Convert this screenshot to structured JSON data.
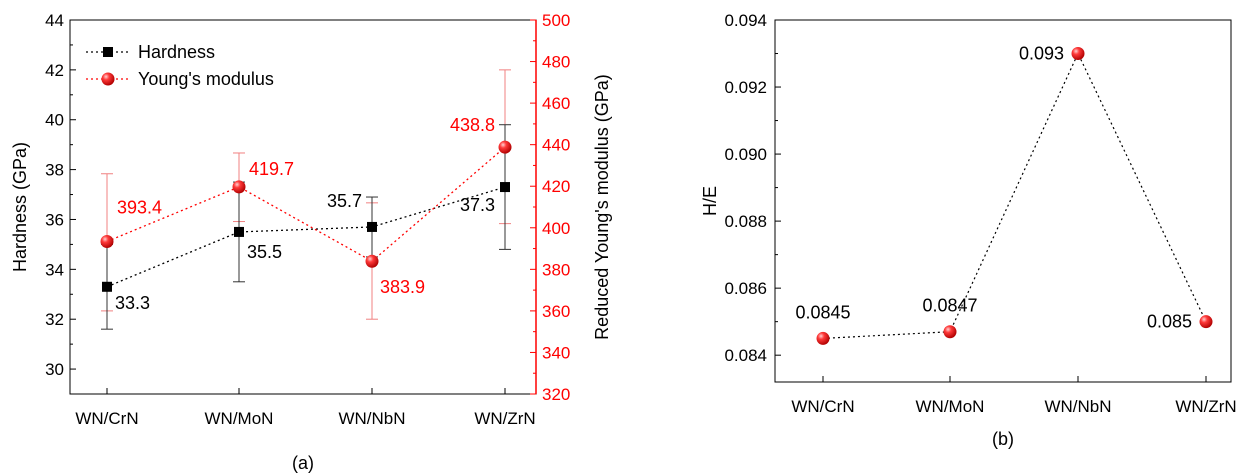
{
  "colors": {
    "hardness": "#000000",
    "modulus": "#ff0000",
    "modulus_errorbar": "#f08080",
    "axis": "#000000"
  },
  "chart_data": [
    {
      "panel": "(a)",
      "type": "line",
      "categories": [
        "WN/CrN",
        "WN/MoN",
        "WN/NbN",
        "WN/ZrN"
      ],
      "y_axis_left": {
        "label": "Hardness (GPa)",
        "lim": [
          29,
          44
        ],
        "ticks": [
          "30",
          "32",
          "34",
          "36",
          "38",
          "40",
          "42",
          "44"
        ]
      },
      "y_axis_right": {
        "label": "Reduced Young's modulus (GPa)",
        "lim": [
          320,
          500
        ],
        "ticks": [
          "320",
          "340",
          "360",
          "380",
          "400",
          "420",
          "440",
          "460",
          "480",
          "500"
        ]
      },
      "legend": {
        "position": "top-left",
        "entries": [
          "Hardness",
          "Young's modulus"
        ]
      },
      "series": [
        {
          "name": "Hardness",
          "axis": "left",
          "marker": "square",
          "values": [
            33.3,
            35.5,
            35.7,
            37.3
          ],
          "labels": [
            "33.3",
            "35.5",
            "35.7",
            "37.3"
          ],
          "err_low": [
            31.6,
            33.5,
            34.5,
            34.8
          ],
          "err_high": [
            35.0,
            37.5,
            36.9,
            39.8
          ]
        },
        {
          "name": "Young's modulus",
          "axis": "right",
          "marker": "sphere",
          "values": [
            393.4,
            419.7,
            383.9,
            438.8
          ],
          "labels": [
            "393.4",
            "419.7",
            "383.9",
            "438.8"
          ],
          "err_low": [
            360,
            403,
            356,
            402
          ],
          "err_high": [
            426,
            436,
            412,
            476
          ]
        }
      ],
      "grid": false
    },
    {
      "panel": "(b)",
      "type": "line",
      "categories": [
        "WN/CrN",
        "WN/MoN",
        "WN/NbN",
        "WN/ZrN"
      ],
      "y_axis_left": {
        "label": "H/E",
        "lim": [
          0.0832,
          0.094
        ],
        "ticks": [
          "0.084",
          "0.086",
          "0.088",
          "0.090",
          "0.092",
          "0.094"
        ]
      },
      "series": [
        {
          "marker": "sphere",
          "values": [
            0.0845,
            0.0847,
            0.093,
            0.085
          ],
          "labels": [
            "0.0845",
            "0.0847",
            "0.093",
            "0.085"
          ]
        }
      ],
      "grid": false
    }
  ]
}
